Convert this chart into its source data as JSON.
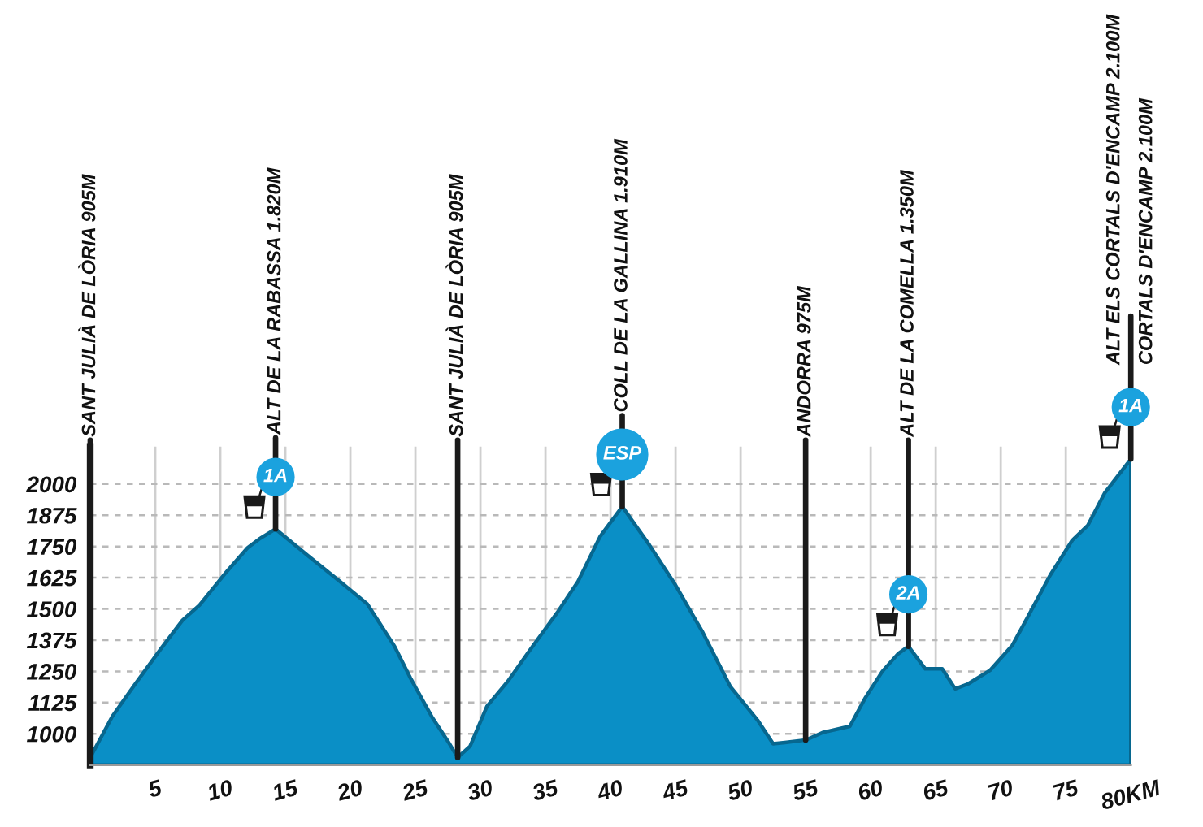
{
  "chart_data": {
    "type": "area",
    "x": [
      0,
      1.7,
      3.4,
      5.5,
      7.1,
      8.4,
      10.5,
      12.1,
      13,
      14.25,
      16.7,
      19.2,
      21.3,
      23.4,
      24.6,
      26.3,
      27.5,
      28.25,
      29.2,
      30.5,
      32.1,
      33.8,
      35.9,
      37.5,
      39.2,
      40.9,
      43,
      45,
      47.1,
      49.2,
      51.3,
      52.5,
      53.4,
      55,
      56.3,
      58.4,
      59.6,
      60.9,
      62.1,
      62.9,
      64.2,
      65.5,
      66.5,
      67.5,
      69.2,
      70.9,
      72.1,
      73.8,
      75.5,
      76.7,
      78,
      80
    ],
    "series": [
      {
        "color": "#0a8fc6",
        "values": [
          905,
          1070,
          1195,
          1345,
          1455,
          1515,
          1650,
          1745,
          1780,
          1820,
          1715,
          1610,
          1520,
          1350,
          1225,
          1065,
          970,
          905,
          950,
          1110,
          1210,
          1335,
          1485,
          1610,
          1790,
          1910,
          1755,
          1595,
          1405,
          1190,
          1055,
          960,
          965,
          975,
          1005,
          1030,
          1145,
          1250,
          1320,
          1350,
          1260,
          1260,
          1180,
          1200,
          1255,
          1355,
          1470,
          1635,
          1775,
          1835,
          1965,
          2100
        ]
      }
    ],
    "xlim": [
      0,
      80
    ],
    "ylim": [
      875,
      2150
    ],
    "xticks": [
      5,
      10,
      15,
      20,
      25,
      30,
      35,
      40,
      45,
      50,
      55,
      60,
      65,
      70,
      75,
      {
        "value": 80,
        "label": "80KM"
      }
    ],
    "yticks": [
      1000,
      1125,
      1250,
      1375,
      1500,
      1625,
      1750,
      1875,
      2000
    ],
    "grid": true,
    "annotations": [
      {
        "text": "SANT JULIÀ DE LÒRIA 905M",
        "x": 0,
        "y": 905
      },
      {
        "text": "ALT DE LA RABASSA 1.820M",
        "x": 14.25,
        "y": 1820
      },
      {
        "text": "1A",
        "x": 14.25,
        "y": 1820
      },
      {
        "text": "SANT JULIÀ DE LÒRIA 905M",
        "x": 28.25,
        "y": 905
      },
      {
        "text": "COLL DE LA GALLINA 1.910M",
        "x": 40.9,
        "y": 1910
      },
      {
        "text": "ESP",
        "x": 40.9,
        "y": 1910
      },
      {
        "text": "ANDORRA 975M",
        "x": 55,
        "y": 975
      },
      {
        "text": "ALT DE LA COMELLA 1.350M",
        "x": 62.9,
        "y": 1350
      },
      {
        "text": "2A",
        "x": 62.9,
        "y": 1350
      },
      {
        "text": "ALT ELS CORTALS D'ENCAMP 2.100M",
        "x": 80,
        "y": 2100
      },
      {
        "text": "CORTALS D'ENCAMP 2.100M",
        "x": 80,
        "y": 2100
      },
      {
        "text": "1A",
        "x": 80,
        "y": 2100
      }
    ]
  }
}
